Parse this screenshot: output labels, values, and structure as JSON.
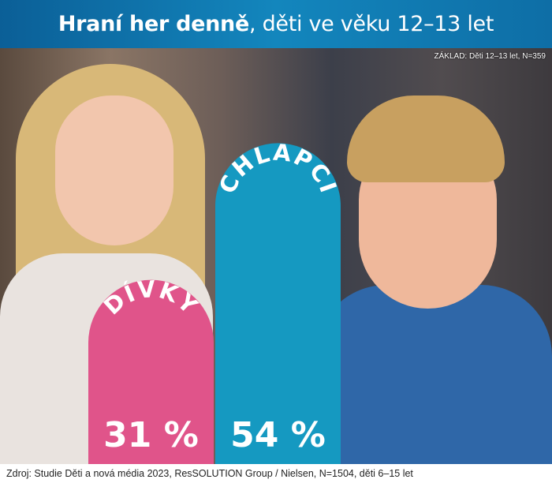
{
  "header": {
    "title_bold": "Hraní her denně",
    "title_rest": ", děti ve věku 12–13 let"
  },
  "base_note": "ZÁKLAD: Děti 12–13 let, N=359",
  "footer": {
    "source": "Zdroj: Studie Děti a nová média 2023, ResSOLUTION Group / Nielsen, N=1504, děti 6–15 let"
  },
  "chart_data": {
    "type": "bar",
    "title": "Hraní her denně, děti ve věku 12–13 let",
    "categories": [
      "DÍVKY",
      "CHLAPCI"
    ],
    "values": [
      31,
      54
    ],
    "value_labels": [
      "31 %",
      "54 %"
    ],
    "colors": [
      "#e0548a",
      "#1599c1"
    ],
    "ylim": [
      0,
      100
    ],
    "grid": false
  }
}
